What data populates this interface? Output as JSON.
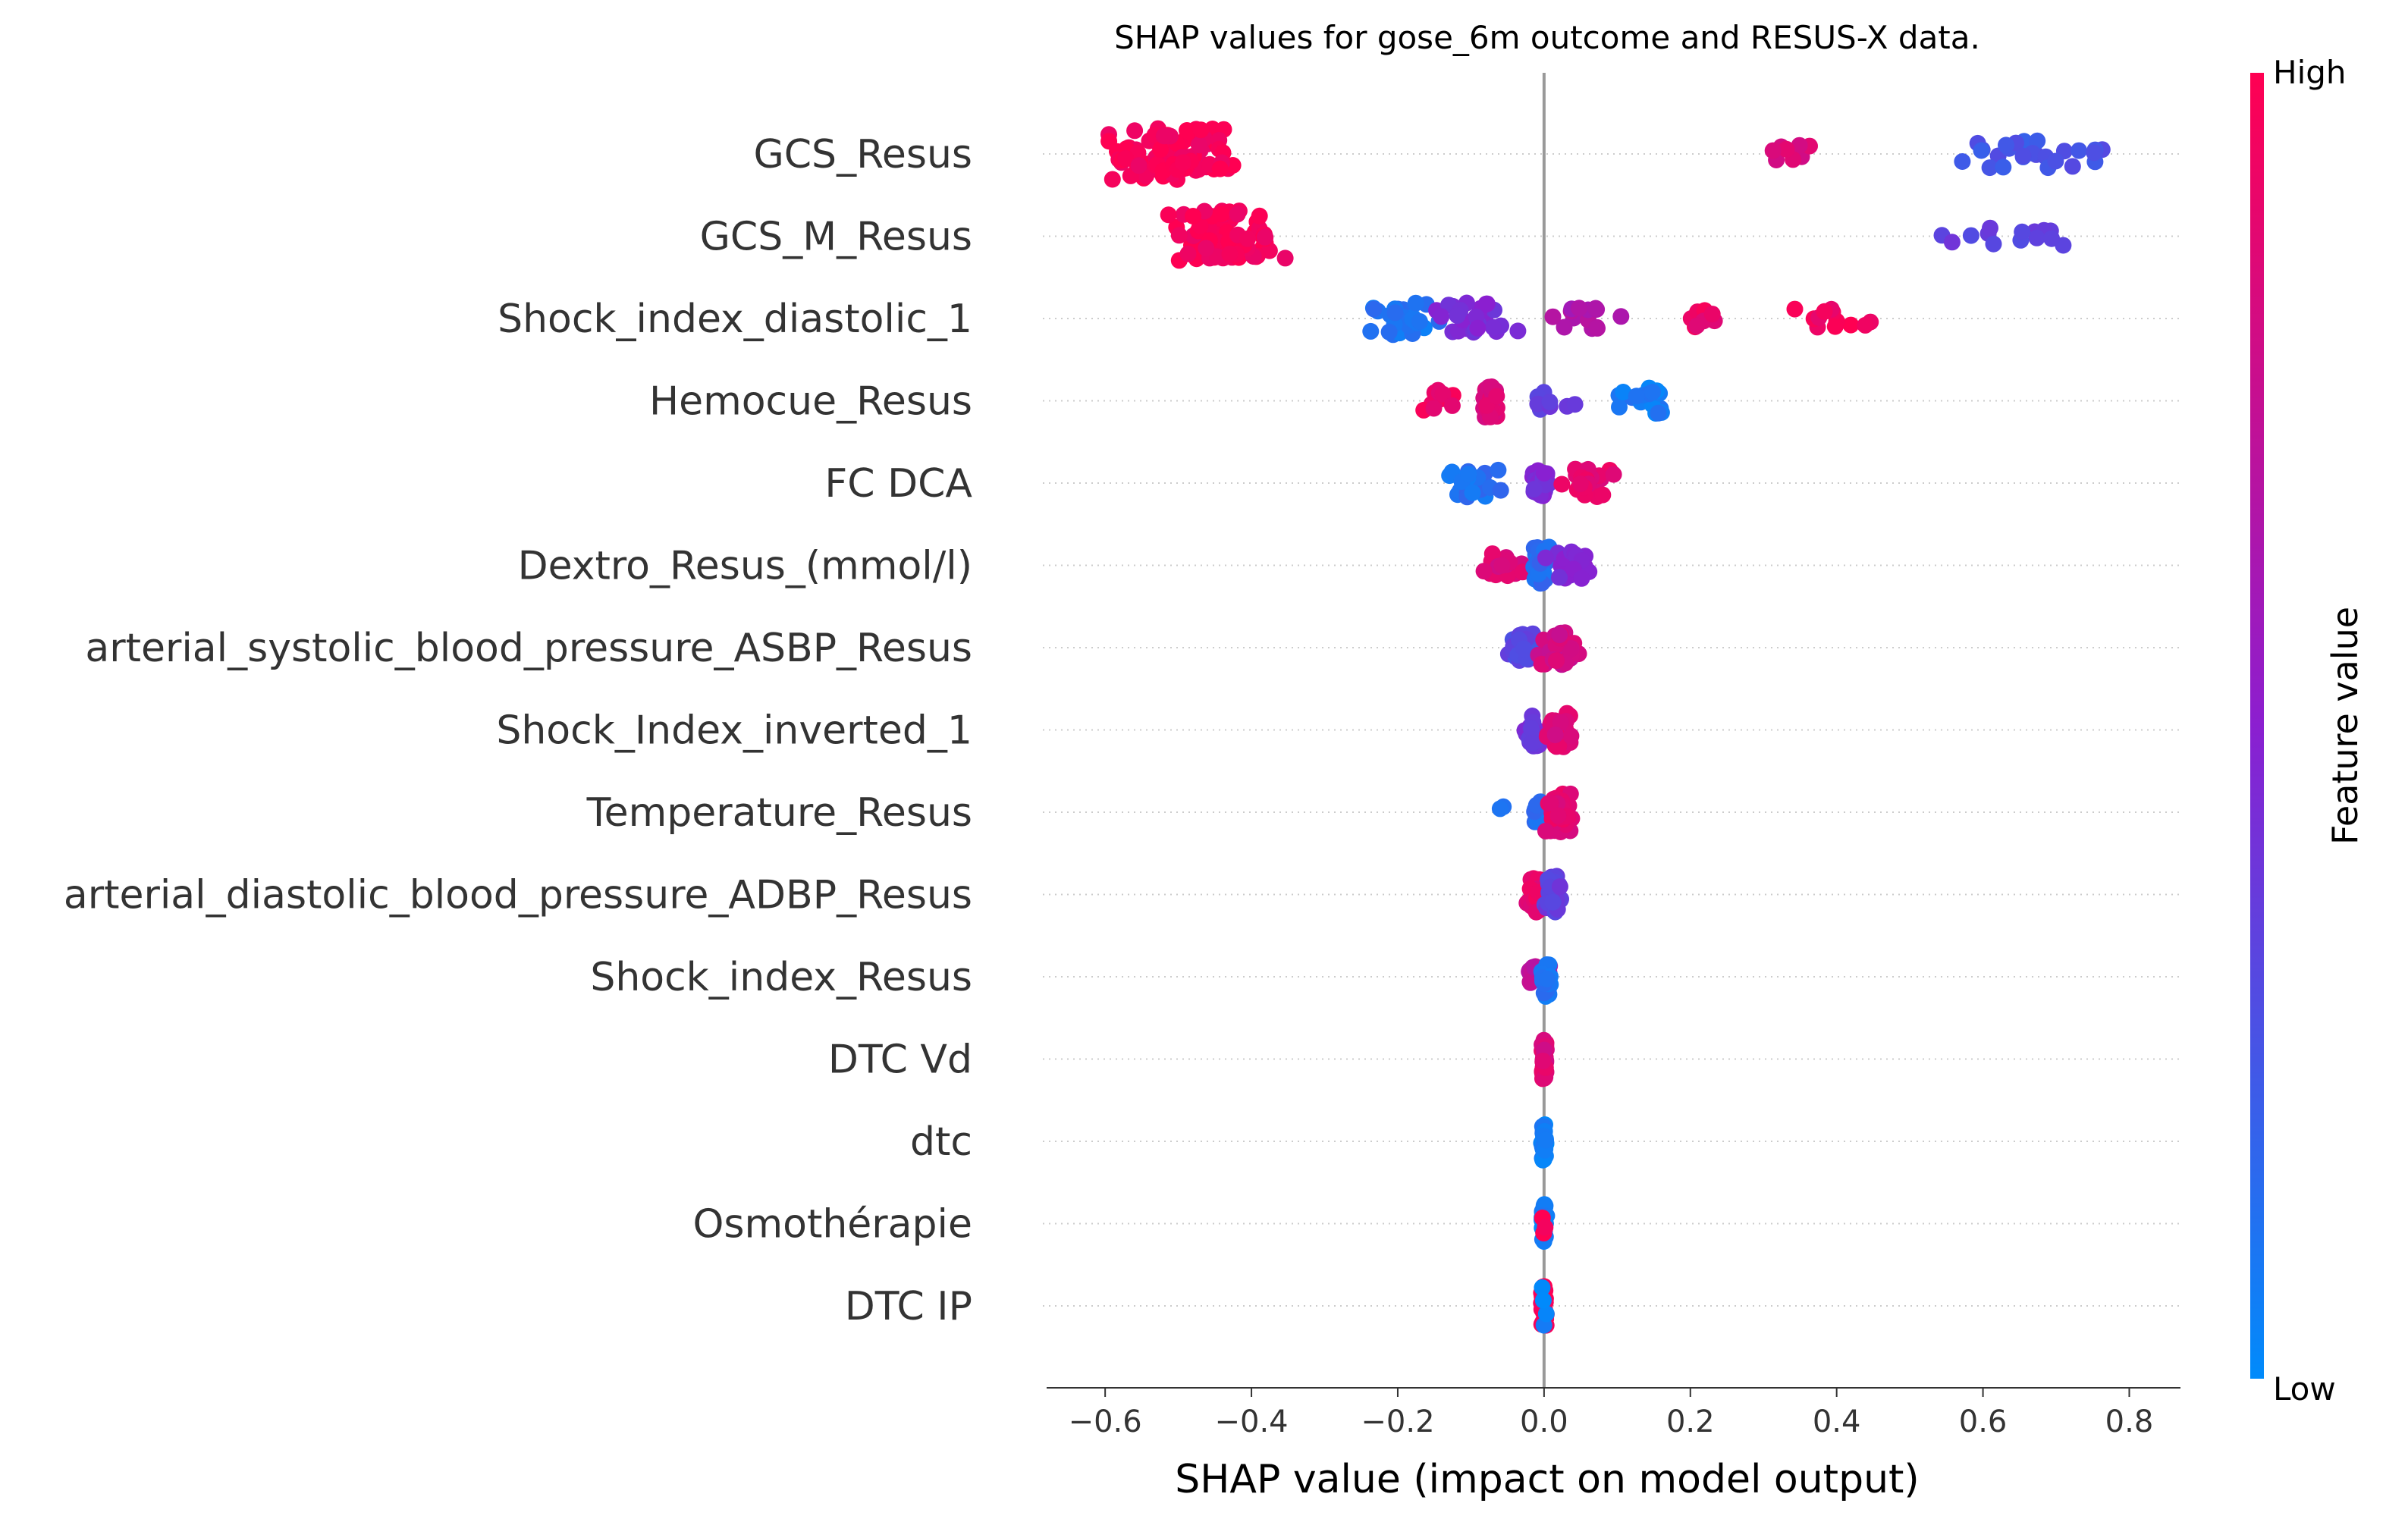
{
  "chart_data": {
    "type": "scatter",
    "subtype": "shap-beeswarm",
    "title": "SHAP values for gose_6m outcome and RESUS-X data.",
    "xlabel": "SHAP value (impact on model output)",
    "xlim": [
      -0.68,
      0.87
    ],
    "xticks": [
      -0.6,
      -0.4,
      -0.2,
      0.0,
      0.2,
      0.4,
      0.6,
      0.8
    ],
    "xtick_labels": [
      "−0.6",
      "−0.4",
      "−0.2",
      "0.0",
      "0.2",
      "0.4",
      "0.6",
      "0.8"
    ],
    "zero_line": true,
    "grid": "dotted horizontal row guides",
    "colorbar": {
      "label": "Feature value",
      "high_label": "High",
      "low_label": "Low",
      "high_color": "#ff0052",
      "mid_color": "#8b1fd0",
      "low_color": "#008bfb"
    },
    "features": [
      {
        "name": "GCS_Resus",
        "clusters": [
          {
            "x": [
              -0.62,
              -0.4
            ],
            "n": 90,
            "color": 0.97
          },
          {
            "x": [
              0.3,
              0.39
            ],
            "n": 8,
            "color": 0.85
          },
          {
            "x": [
              0.55,
              0.8
            ],
            "n": 26,
            "color": 0.25
          }
        ]
      },
      {
        "name": "GCS_M_Resus",
        "clusters": [
          {
            "x": [
              -0.52,
              -0.35
            ],
            "n": 80,
            "color": 0.97
          },
          {
            "x": [
              0.52,
              0.74
            ],
            "n": 14,
            "color": 0.35
          }
        ]
      },
      {
        "name": "Shock_index_diastolic_1",
        "clusters": [
          {
            "x": [
              -0.24,
              -0.14
            ],
            "n": 30,
            "color": 0.1
          },
          {
            "x": [
              -0.16,
              -0.03
            ],
            "n": 28,
            "color": 0.45
          },
          {
            "x": [
              0.0,
              0.12
            ],
            "n": 14,
            "color": 0.65
          },
          {
            "x": [
              0.19,
              0.24
            ],
            "n": 10,
            "color": 0.92
          },
          {
            "x": [
              0.33,
              0.46
            ],
            "n": 12,
            "color": 0.95
          }
        ]
      },
      {
        "name": "Hemocue_Resus",
        "clusters": [
          {
            "x": [
              -0.17,
              -0.12
            ],
            "n": 14,
            "color": 0.93
          },
          {
            "x": [
              -0.09,
              -0.06
            ],
            "n": 30,
            "color": 0.85
          },
          {
            "x": [
              -0.03,
              0.05
            ],
            "n": 8,
            "color": 0.35
          },
          {
            "x": [
              0.07,
              0.21
            ],
            "n": 20,
            "color": 0.08
          }
        ]
      },
      {
        "name": "FC  DCA",
        "clusters": [
          {
            "x": [
              -0.14,
              -0.05
            ],
            "n": 26,
            "color": 0.12
          },
          {
            "x": [
              -0.02,
              0.01
            ],
            "n": 22,
            "color": 0.45
          },
          {
            "x": [
              0.02,
              0.1
            ],
            "n": 24,
            "color": 0.88
          }
        ]
      },
      {
        "name": "Dextro_Resus_(mmol/l)",
        "clusters": [
          {
            "x": [
              -0.09,
              -0.02
            ],
            "n": 18,
            "color": 0.85
          },
          {
            "x": [
              -0.02,
              0.01
            ],
            "n": 36,
            "color": 0.15
          },
          {
            "x": [
              0.0,
              0.07
            ],
            "n": 22,
            "color": 0.45
          }
        ]
      },
      {
        "name": "arterial_systolic_blood_pressure_ASBP_Resus",
        "clusters": [
          {
            "x": [
              -0.05,
              -0.01
            ],
            "n": 24,
            "color": 0.3
          },
          {
            "x": [
              -0.01,
              0.05
            ],
            "n": 34,
            "color": 0.8
          }
        ]
      },
      {
        "name": "Shock_Index_inverted_1",
        "clusters": [
          {
            "x": [
              -0.035,
              0.0
            ],
            "n": 30,
            "color": 0.4
          },
          {
            "x": [
              0.0,
              0.04
            ],
            "n": 34,
            "color": 0.85
          }
        ]
      },
      {
        "name": "Temperature_Resus",
        "clusters": [
          {
            "x": [
              -0.065,
              -0.055
            ],
            "n": 2,
            "color": 0.1
          },
          {
            "x": [
              -0.02,
              0.0
            ],
            "n": 14,
            "color": 0.15
          },
          {
            "x": [
              0.0,
              0.04
            ],
            "n": 40,
            "color": 0.88
          }
        ]
      },
      {
        "name": "arterial_diastolic_blood_pressure_ADBP_Resus",
        "clusters": [
          {
            "x": [
              -0.025,
              0.0
            ],
            "n": 36,
            "color": 0.9
          },
          {
            "x": [
              0.0,
              0.025
            ],
            "n": 36,
            "color": 0.35
          }
        ]
      },
      {
        "name": "Shock_index_Resus",
        "clusters": [
          {
            "x": [
              -0.03,
              0.02
            ],
            "n": 22,
            "color": 0.7
          },
          {
            "x": [
              -0.005,
              0.01
            ],
            "n": 24,
            "color": 0.1
          }
        ]
      },
      {
        "name": "DTC Vd",
        "clusters": [
          {
            "x": [
              -0.004,
              0.004
            ],
            "n": 40,
            "color": 0.85
          }
        ]
      },
      {
        "name": "dtc",
        "clusters": [
          {
            "x": [
              -0.004,
              0.004
            ],
            "n": 40,
            "color": 0.05
          }
        ]
      },
      {
        "name": "Osmothérapie",
        "clusters": [
          {
            "x": [
              -0.004,
              0.004
            ],
            "n": 36,
            "color": 0.05
          },
          {
            "x": [
              -0.004,
              0.004
            ],
            "n": 4,
            "color": 1.0
          }
        ]
      },
      {
        "name": "DTC IP",
        "clusters": [
          {
            "x": [
              -0.004,
              0.004
            ],
            "n": 36,
            "color": 1.0
          },
          {
            "x": [
              -0.004,
              0.004
            ],
            "n": 4,
            "color": 0.05
          }
        ]
      }
    ]
  }
}
